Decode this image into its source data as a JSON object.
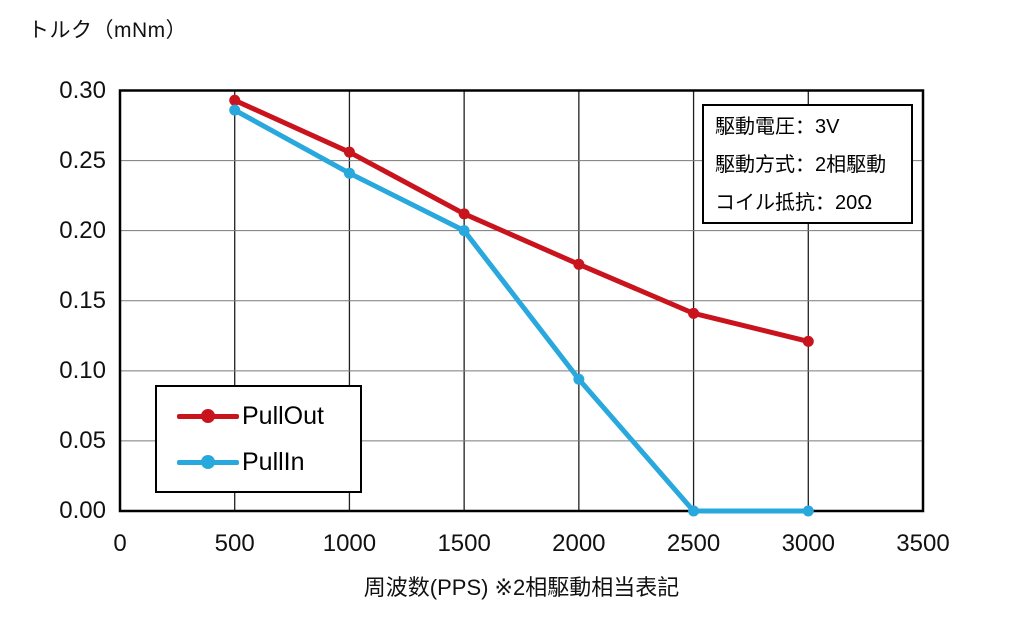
{
  "y_axis_title": "トルク（mNm）",
  "x_axis_title": "周波数(PPS) ※2相駆動相当表記",
  "info_box": {
    "lines": [
      "駆動電圧：3V",
      "駆動方式：2相駆動",
      "コイル抵抗：20Ω"
    ]
  },
  "chart_data": {
    "type": "line",
    "x": [
      500,
      1000,
      1500,
      2000,
      2500,
      3000
    ],
    "series": [
      {
        "name": "PullOut",
        "color": "#c9141d",
        "values": [
          0.293,
          0.256,
          0.212,
          0.176,
          0.141,
          0.121
        ]
      },
      {
        "name": "PullIn",
        "color": "#29a8dd",
        "values": [
          0.286,
          0.241,
          0.2,
          0.094,
          0.0,
          0.0
        ]
      }
    ],
    "title": "",
    "xlabel": "周波数(PPS) ※2相駆動相当表記",
    "ylabel": "トルク（mNm）",
    "xlim": [
      0,
      3500
    ],
    "ylim": [
      0,
      0.3
    ],
    "x_ticks": [
      0,
      500,
      1000,
      1500,
      2000,
      2500,
      3000,
      3500
    ],
    "y_tick_labels": [
      "0.00",
      "0.05",
      "0.10",
      "0.15",
      "0.20",
      "0.25",
      "0.30"
    ],
    "grid": true,
    "grid_h_color": "#7a7a7a",
    "grid_v_color": "#1f1f1f",
    "border_color": "#000000",
    "marker": "circle",
    "line_width": 5,
    "legend_position": "inside-lower-left"
  }
}
